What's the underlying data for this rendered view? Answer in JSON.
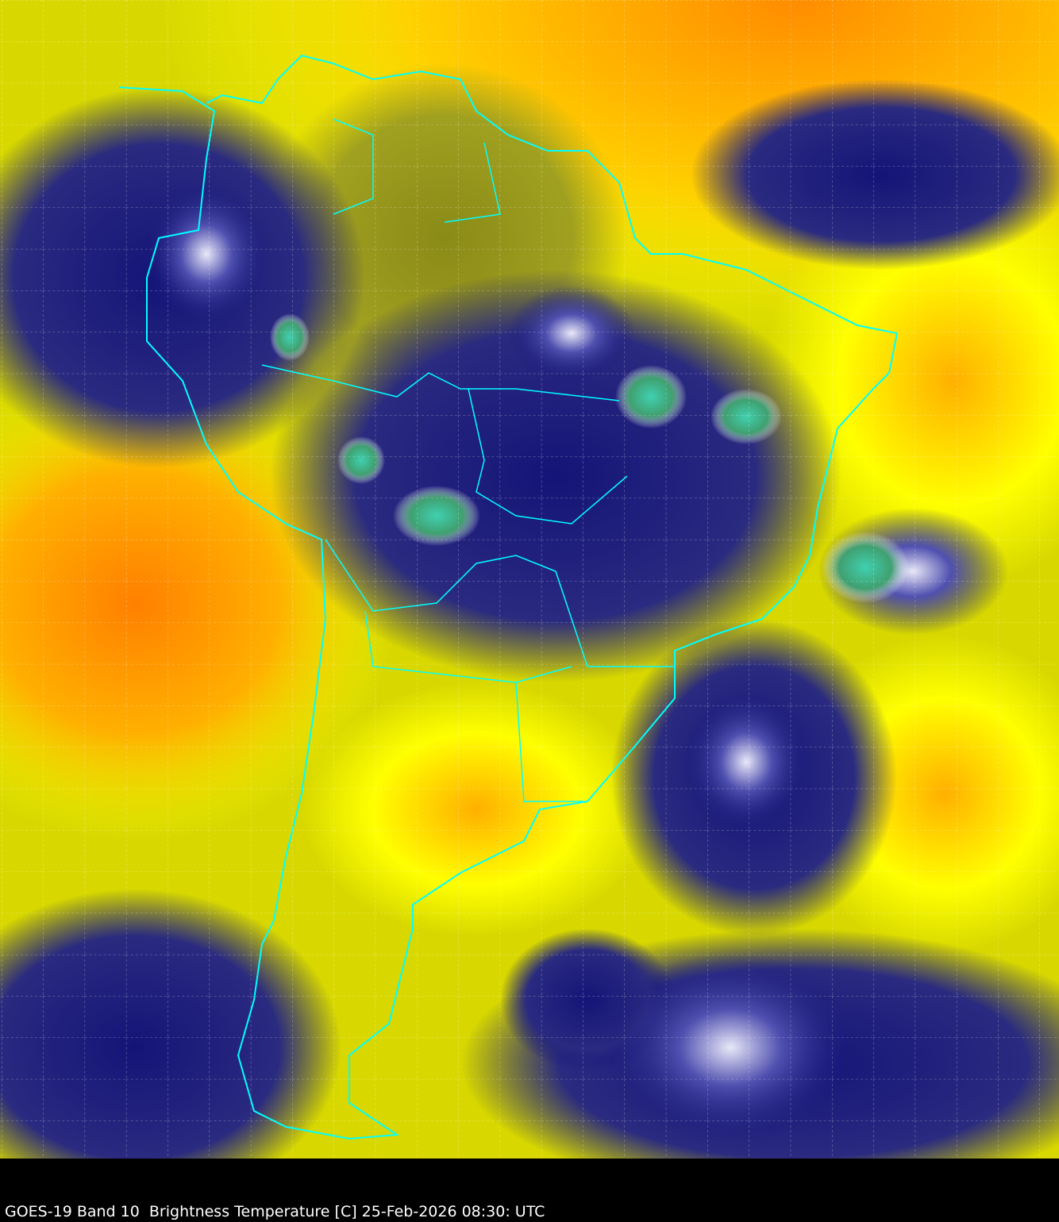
{
  "caption": "GOES-19 Band 10  Brightness Temperature [C] 25-Feb-2026 08:30: UTC",
  "colors": {
    "warm": "#ff8c00",
    "mid": "#ffff00",
    "dry_olive": "#8a8a10",
    "cold": "#141478",
    "very_cold": "#ffffff",
    "deep_convection": "#40c0a0",
    "borders": "#00ffff",
    "gridlines": "#ffffff",
    "background": "#000000"
  }
}
